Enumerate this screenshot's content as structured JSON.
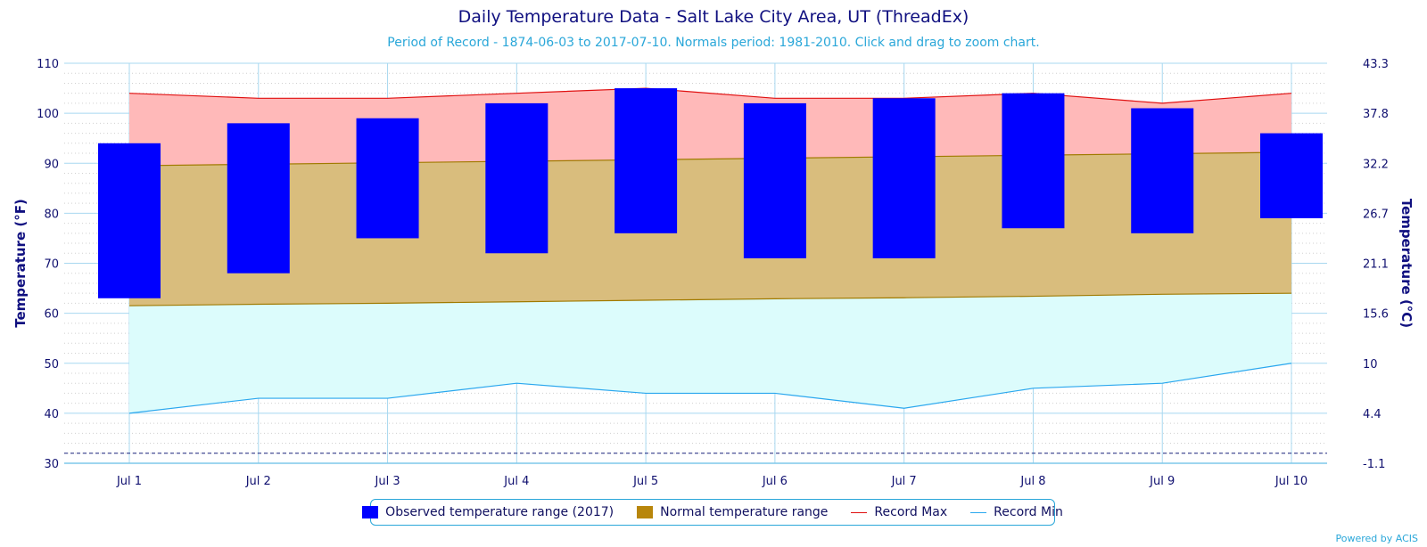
{
  "chart_data": {
    "type": "area",
    "title": "Daily Temperature Data - Salt Lake City Area, UT (ThreadEx)",
    "subtitle": "Period of Record - 1874-06-03 to 2017-07-10. Normals period: 1981-2010. Click and drag to zoom chart.",
    "ylabel": "Temperature (°F)",
    "ylabel_right": "Temperature (°C)",
    "categories": [
      "Jul 1",
      "Jul 2",
      "Jul 3",
      "Jul 4",
      "Jul 5",
      "Jul 6",
      "Jul 7",
      "Jul 8",
      "Jul 9",
      "Jul 10"
    ],
    "ylim": [
      30,
      110
    ],
    "yticks": [
      "30",
      "40",
      "50",
      "60",
      "70",
      "80",
      "90",
      "100",
      "110"
    ],
    "yticks_right": [
      "-1.1",
      "4.4",
      "10",
      "15.6",
      "21.1",
      "26.7",
      "32.2",
      "37.8",
      "43.3"
    ],
    "freezing_line": 32,
    "series": [
      {
        "name": "Observed temperature range (2017)",
        "type": "columnrange",
        "color": "#0000ff",
        "low": [
          63,
          68,
          75,
          72,
          76,
          71,
          71,
          77,
          76,
          79
        ],
        "high": [
          94,
          98,
          99,
          102,
          105,
          102,
          103,
          104,
          101,
          96
        ]
      },
      {
        "name": "Normal temperature range",
        "type": "arearange",
        "color": "#b8860b",
        "low": [
          61.5,
          61.8,
          62.0,
          62.3,
          62.6,
          62.9,
          63.1,
          63.4,
          63.8,
          64.0
        ],
        "high": [
          89.5,
          89.8,
          90.1,
          90.4,
          90.7,
          91.0,
          91.3,
          91.6,
          91.9,
          92.2
        ]
      },
      {
        "name": "Record Max",
        "type": "line",
        "color": "#e01010",
        "values": [
          104,
          103,
          103,
          104,
          105,
          103,
          103,
          104,
          102,
          104
        ]
      },
      {
        "name": "Record Min",
        "type": "line",
        "color": "#2aa7ee",
        "values": [
          40,
          43,
          43,
          46,
          44,
          44,
          41,
          45,
          46,
          50
        ]
      }
    ],
    "grid": true,
    "legend_position": "bottom-center"
  },
  "legend": {
    "observed": "Observed temperature range (2017)",
    "normal": "Normal temperature range",
    "record_max": "Record Max",
    "record_min": "Record Min"
  },
  "credit": "Powered by ACIS"
}
